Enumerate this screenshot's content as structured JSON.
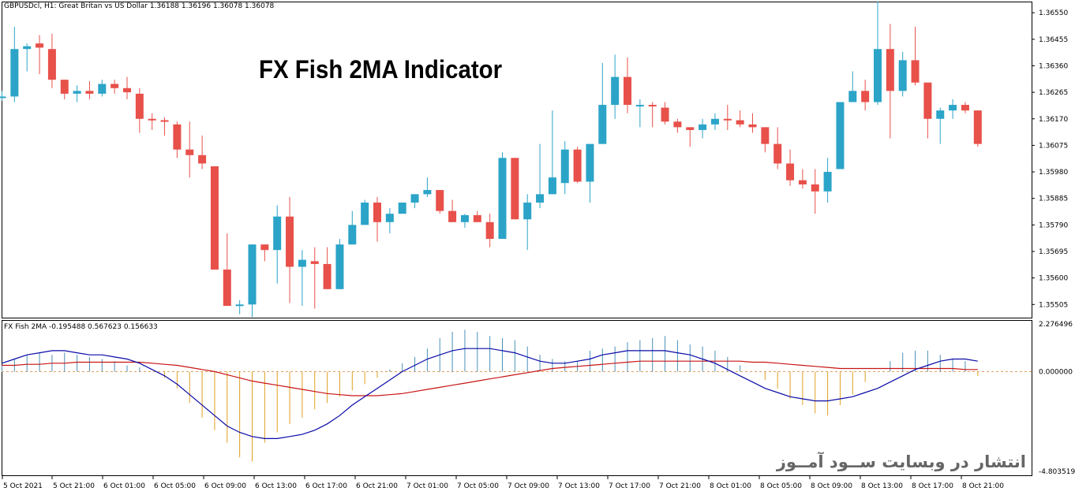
{
  "header": {
    "info_text": "GBPUSDcl, H1:  Great Britan vs US Dollar  1.36188 1.36196 1.36078 1.36078",
    "main_title": "FX Fish 2MA Indicator"
  },
  "indicator": {
    "info_text": "FX Fish 2MA -0.195488 0.567623 0.156633",
    "scale_top": "2.276496",
    "scale_zero": "0.000000",
    "scale_bottom": "-4.803519"
  },
  "watermark": "انتشار در وبسایت  ســود آمــوز",
  "price_axis": [
    "1.36550",
    "1.36455",
    "1.36360",
    "1.36265",
    "1.36170",
    "1.36075",
    "1.35980",
    "1.35885",
    "1.35790",
    "1.35695",
    "1.35600",
    "1.35505"
  ],
  "time_axis": [
    "5 Oct 2021",
    "5 Oct 21:00",
    "6 Oct 01:00",
    "6 Oct 05:00",
    "6 Oct 09:00",
    "6 Oct 13:00",
    "6 Oct 17:00",
    "6 Oct 21:00",
    "7 Oct 01:00",
    "7 Oct 05:00",
    "7 Oct 09:00",
    "7 Oct 13:00",
    "7 Oct 17:00",
    "7 Oct 21:00",
    "8 Oct 01:00",
    "8 Oct 05:00",
    "8 Oct 09:00",
    "8 Oct 13:00",
    "8 Oct 17:00",
    "8 Oct 21:00"
  ],
  "colors": {
    "bull": "#2ba4c8",
    "bear": "#e8504a",
    "blue_line": "#0a0aa8",
    "red_line": "#c81414",
    "hist_pos": "#4a90b8",
    "hist_neg": "#e0a020",
    "zero_line": "#e0a060"
  },
  "chart_data": [
    {
      "type": "candlestick",
      "title": "GBPUSDcl, H1",
      "ylim": [
        1.35455,
        1.3659
      ],
      "candles": [
        [
          1.3625,
          1.3627,
          1.36235,
          1.3625
        ],
        [
          1.3625,
          1.365,
          1.3623,
          1.3642
        ],
        [
          1.3642,
          1.3644,
          1.3634,
          1.3643
        ],
        [
          1.3644,
          1.3647,
          1.3633,
          1.36425
        ],
        [
          1.3642,
          1.36475,
          1.3628,
          1.3631
        ],
        [
          1.3631,
          1.3631,
          1.3624,
          1.3626
        ],
        [
          1.3626,
          1.3629,
          1.3623,
          1.3627
        ],
        [
          1.3627,
          1.36305,
          1.3624,
          1.3626
        ],
        [
          1.3626,
          1.3631,
          1.3625,
          1.36295
        ],
        [
          1.36295,
          1.3631,
          1.3626,
          1.3628
        ],
        [
          1.3628,
          1.3632,
          1.3624,
          1.36265
        ],
        [
          1.3626,
          1.3628,
          1.3612,
          1.3617
        ],
        [
          1.3617,
          1.3619,
          1.3613,
          1.36165
        ],
        [
          1.36165,
          1.36175,
          1.3611,
          1.3616
        ],
        [
          1.3615,
          1.3616,
          1.3603,
          1.3606
        ],
        [
          1.3606,
          1.3616,
          1.3596,
          1.3604
        ],
        [
          1.3604,
          1.3611,
          1.3599,
          1.3601
        ],
        [
          1.36,
          1.36,
          1.3563,
          1.3563
        ],
        [
          1.3563,
          1.3576,
          1.355,
          1.355
        ],
        [
          1.355,
          1.3552,
          1.3547,
          1.35505
        ],
        [
          1.35505,
          1.3572,
          1.3546,
          1.3572
        ],
        [
          1.3572,
          1.3572,
          1.3566,
          1.357
        ],
        [
          1.357,
          1.3586,
          1.3558,
          1.3582
        ],
        [
          1.3582,
          1.3589,
          1.3551,
          1.3564
        ],
        [
          1.3564,
          1.357,
          1.355,
          1.35665
        ],
        [
          1.3566,
          1.3571,
          1.3549,
          1.3565
        ],
        [
          1.3565,
          1.3571,
          1.3556,
          1.3556
        ],
        [
          1.3556,
          1.3574,
          1.3556,
          1.3572
        ],
        [
          1.3572,
          1.3584,
          1.3572,
          1.3579
        ],
        [
          1.3579,
          1.3588,
          1.3579,
          1.3587
        ],
        [
          1.3587,
          1.3589,
          1.3573,
          1.358
        ],
        [
          1.358,
          1.3585,
          1.3576,
          1.3583
        ],
        [
          1.3583,
          1.3587,
          1.3583,
          1.3587
        ],
        [
          1.3587,
          1.359,
          1.3585,
          1.359
        ],
        [
          1.359,
          1.3596,
          1.3589,
          1.35915
        ],
        [
          1.35915,
          1.35915,
          1.3583,
          1.3584
        ],
        [
          1.3584,
          1.3588,
          1.358,
          1.358
        ],
        [
          1.358,
          1.3583,
          1.3578,
          1.35825
        ],
        [
          1.35825,
          1.3584,
          1.358,
          1.358
        ],
        [
          1.358,
          1.3583,
          1.3571,
          1.3574
        ],
        [
          1.3574,
          1.3605,
          1.3574,
          1.3603
        ],
        [
          1.3603,
          1.3603,
          1.3581,
          1.3581
        ],
        [
          1.3581,
          1.359,
          1.357,
          1.3587
        ],
        [
          1.3587,
          1.3608,
          1.3585,
          1.359
        ],
        [
          1.359,
          1.362,
          1.359,
          1.3596
        ],
        [
          1.3594,
          1.3609,
          1.359,
          1.3606
        ],
        [
          1.3606,
          1.3607,
          1.3594,
          1.35945
        ],
        [
          1.35945,
          1.3608,
          1.3587,
          1.3608
        ],
        [
          1.3608,
          1.3637,
          1.3608,
          1.3622
        ],
        [
          1.3622,
          1.364,
          1.3617,
          1.3632
        ],
        [
          1.3632,
          1.3639,
          1.3619,
          1.3622
        ],
        [
          1.3622,
          1.3624,
          1.3614,
          1.3622
        ],
        [
          1.3622,
          1.3623,
          1.3614,
          1.36215
        ],
        [
          1.3621,
          1.3623,
          1.3615,
          1.3616
        ],
        [
          1.3616,
          1.3617,
          1.3612,
          1.3614
        ],
        [
          1.3614,
          1.3614,
          1.3607,
          1.3613
        ],
        [
          1.3613,
          1.3617,
          1.361,
          1.3615
        ],
        [
          1.3615,
          1.3619,
          1.3613,
          1.3617
        ],
        [
          1.3617,
          1.3622,
          1.3613,
          1.36165
        ],
        [
          1.36165,
          1.362,
          1.3614,
          1.3615
        ],
        [
          1.3615,
          1.3619,
          1.3612,
          1.3614
        ],
        [
          1.3614,
          1.3614,
          1.3605,
          1.3608
        ],
        [
          1.3608,
          1.3614,
          1.3599,
          1.3601
        ],
        [
          1.3601,
          1.3606,
          1.3593,
          1.3595
        ],
        [
          1.3595,
          1.3599,
          1.3592,
          1.35935
        ],
        [
          1.35935,
          1.3599,
          1.3583,
          1.3591
        ],
        [
          1.3591,
          1.3603,
          1.3587,
          1.3598
        ],
        [
          1.3599,
          1.3622,
          1.3599,
          1.3623
        ],
        [
          1.3623,
          1.3634,
          1.3623,
          1.3627
        ],
        [
          1.3627,
          1.3631,
          1.362,
          1.3623
        ],
        [
          1.3623,
          1.3659,
          1.3622,
          1.3642
        ],
        [
          1.3642,
          1.3651,
          1.361,
          1.3627
        ],
        [
          1.3627,
          1.3641,
          1.3625,
          1.3638
        ],
        [
          1.3638,
          1.365,
          1.3629,
          1.363
        ],
        [
          1.363,
          1.363,
          1.361,
          1.3617
        ],
        [
          1.3617,
          1.3621,
          1.3608,
          1.362
        ],
        [
          1.362,
          1.3624,
          1.3617,
          1.3622
        ],
        [
          1.3622,
          1.3623,
          1.3619,
          1.362
        ],
        [
          1.362,
          1.362,
          1.3607,
          1.3608
        ]
      ]
    },
    {
      "type": "line+histogram",
      "title": "FX Fish 2MA",
      "ylim": [
        -4.803519,
        2.276496
      ],
      "histogram": [
        0.3,
        0.6,
        0.8,
        0.9,
        0.8,
        0.9,
        0.8,
        0.7,
        0.6,
        0.5,
        0.3,
        0.2,
        0.0,
        -0.3,
        -0.8,
        -1.5,
        -2.2,
        -2.8,
        -3.4,
        -4.1,
        -4.3,
        -3.4,
        -2.9,
        -2.5,
        -2.2,
        -1.8,
        -1.5,
        -1.2,
        -0.9,
        -0.6,
        -0.3,
        0.1,
        0.4,
        0.7,
        1.1,
        1.6,
        1.9,
        2.0,
        1.9,
        1.7,
        1.6,
        1.5,
        1.2,
        0.8,
        0.6,
        0.5,
        0.5,
        1.0,
        1.1,
        1.2,
        1.4,
        1.5,
        1.6,
        1.7,
        1.5,
        1.3,
        1.2,
        1.0,
        0.7,
        0.3,
        0.0,
        -0.4,
        -0.8,
        -1.3,
        -1.6,
        -2.0,
        -2.1,
        -1.6,
        -1.1,
        -0.5,
        0.0,
        0.5,
        0.9,
        1.0,
        1.0,
        0.8,
        0.6,
        0.5,
        -0.2
      ],
      "blue_line": [
        0.4,
        0.6,
        0.8,
        0.9,
        1.0,
        1.0,
        0.9,
        0.8,
        0.8,
        0.7,
        0.6,
        0.4,
        0.1,
        -0.2,
        -0.6,
        -1.1,
        -1.6,
        -2.1,
        -2.6,
        -2.9,
        -3.1,
        -3.2,
        -3.2,
        -3.1,
        -3.0,
        -2.8,
        -2.5,
        -2.1,
        -1.6,
        -1.2,
        -0.8,
        -0.4,
        0.0,
        0.3,
        0.6,
        0.8,
        1.0,
        1.1,
        1.1,
        1.1,
        1.0,
        0.9,
        0.7,
        0.5,
        0.4,
        0.4,
        0.5,
        0.6,
        0.8,
        0.9,
        1.0,
        1.0,
        1.0,
        1.0,
        0.9,
        0.8,
        0.6,
        0.4,
        0.1,
        -0.2,
        -0.5,
        -0.8,
        -1.0,
        -1.2,
        -1.3,
        -1.4,
        -1.4,
        -1.3,
        -1.2,
        -1.0,
        -0.8,
        -0.5,
        -0.2,
        0.1,
        0.3,
        0.5,
        0.6,
        0.6,
        0.5
      ],
      "red_line": [
        0.3,
        0.3,
        0.35,
        0.35,
        0.4,
        0.4,
        0.45,
        0.45,
        0.45,
        0.45,
        0.45,
        0.45,
        0.4,
        0.35,
        0.3,
        0.2,
        0.1,
        0.0,
        -0.15,
        -0.3,
        -0.45,
        -0.55,
        -0.65,
        -0.75,
        -0.85,
        -0.95,
        -1.05,
        -1.1,
        -1.15,
        -1.15,
        -1.15,
        -1.1,
        -1.05,
        -0.95,
        -0.85,
        -0.75,
        -0.65,
        -0.55,
        -0.45,
        -0.35,
        -0.25,
        -0.15,
        -0.05,
        0.05,
        0.15,
        0.2,
        0.25,
        0.3,
        0.35,
        0.4,
        0.45,
        0.5,
        0.5,
        0.5,
        0.5,
        0.5,
        0.5,
        0.5,
        0.5,
        0.5,
        0.45,
        0.45,
        0.4,
        0.35,
        0.3,
        0.25,
        0.2,
        0.15,
        0.15,
        0.15,
        0.15,
        0.15,
        0.15,
        0.15,
        0.15,
        0.15,
        0.15,
        0.1,
        0.1
      ]
    }
  ]
}
